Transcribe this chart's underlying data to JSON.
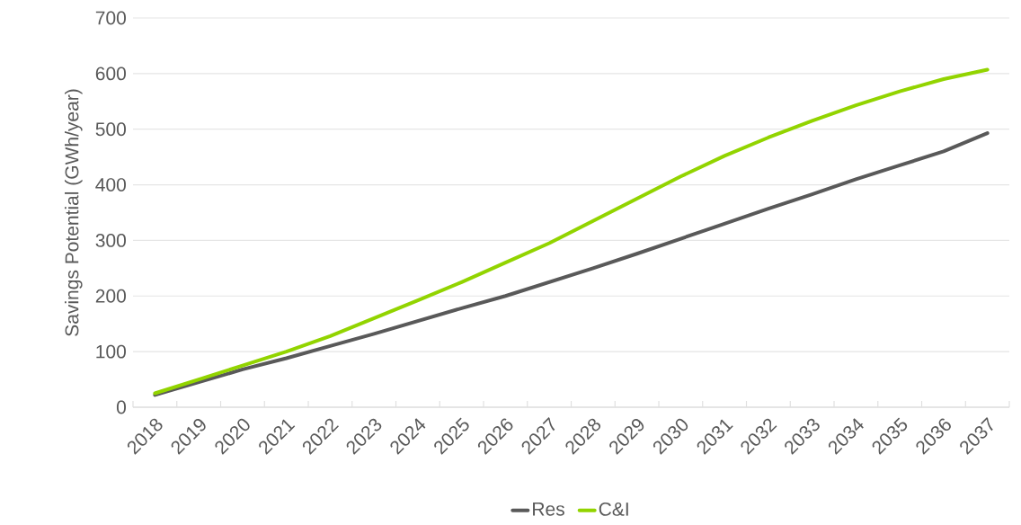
{
  "chart_data": {
    "type": "line",
    "ylabel": "Savings Potential (GWh/year)",
    "categories": [
      "2018",
      "2019",
      "2020",
      "2021",
      "2022",
      "2023",
      "2024",
      "2025",
      "2026",
      "2027",
      "2028",
      "2029",
      "2030",
      "2031",
      "2032",
      "2033",
      "2034",
      "2035",
      "2036",
      "2037"
    ],
    "series": [
      {
        "name": "Res",
        "color": "#595959",
        "values": [
          22,
          45,
          68,
          88,
          110,
          132,
          155,
          178,
          200,
          225,
          250,
          276,
          303,
          330,
          357,
          383,
          410,
          435,
          460,
          493
        ]
      },
      {
        "name": "C&I",
        "color": "#92d400",
        "values": [
          25,
          50,
          75,
          100,
          128,
          160,
          192,
          225,
          260,
          295,
          335,
          375,
          415,
          452,
          485,
          515,
          543,
          568,
          590,
          607
        ]
      }
    ],
    "ylim": [
      0,
      700
    ],
    "yticks": [
      0,
      100,
      200,
      300,
      400,
      500,
      600,
      700
    ],
    "grid": "y",
    "legend": "bottom",
    "marker": "none",
    "line_style": "solid"
  }
}
